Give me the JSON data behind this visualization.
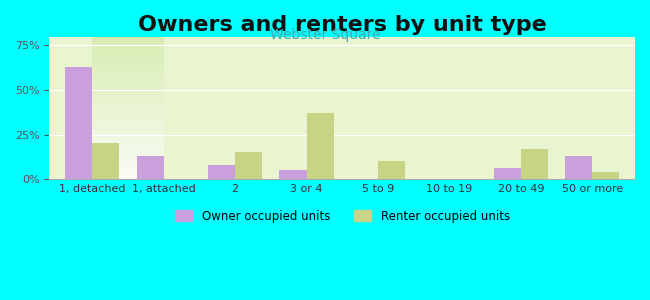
{
  "title": "Owners and renters by unit type",
  "subtitle": "Webster Square",
  "categories": [
    "1, detached",
    "1, attached",
    "2",
    "3 or 4",
    "5 to 9",
    "10 to 19",
    "20 to 49",
    "50 or more"
  ],
  "owner_values": [
    63,
    13,
    8,
    5,
    0,
    0,
    6,
    13
  ],
  "renter_values": [
    20,
    0,
    15,
    37,
    10,
    0,
    17,
    4
  ],
  "owner_color": "#c9a0dc",
  "renter_color": "#c8d485",
  "owner_label": "Owner occupied units",
  "renter_label": "Renter occupied units",
  "ylim": [
    0,
    80
  ],
  "yticks": [
    0,
    25,
    50,
    75
  ],
  "background_color": "#00ffff",
  "plot_bg_start": "#f5fff5",
  "plot_bg_end": "#ffffff",
  "title_fontsize": 16,
  "subtitle_fontsize": 10,
  "bar_width": 0.38
}
